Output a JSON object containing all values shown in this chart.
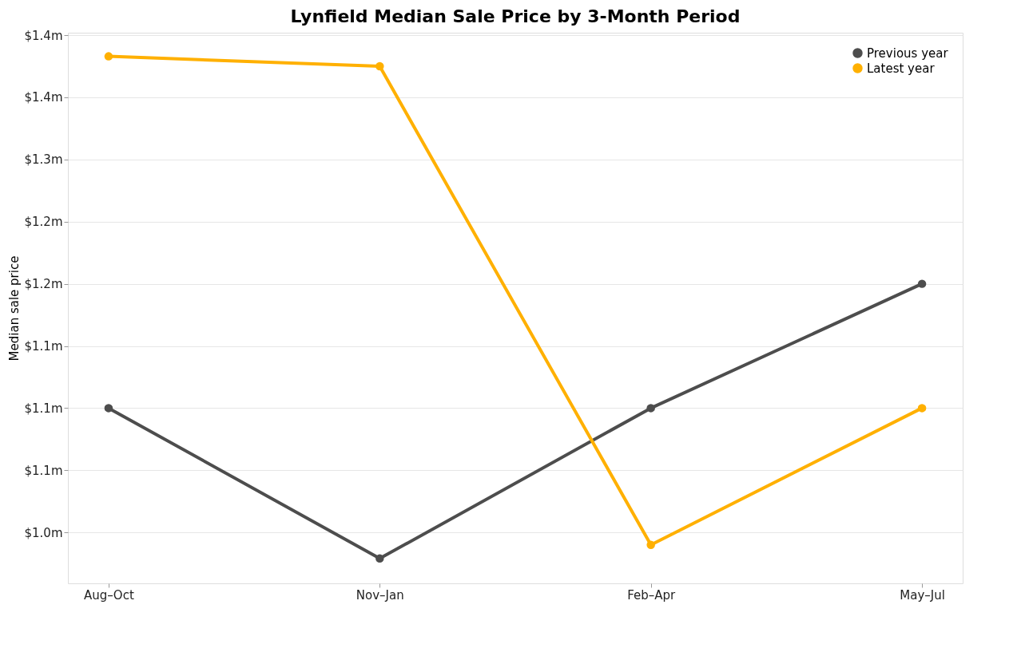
{
  "chart_data": {
    "type": "line",
    "title": "Lynfield Median Sale Price by 3-Month Period",
    "ylabel": "Median sale price",
    "categories": [
      "Aug–Oct",
      "Nov–Jan",
      "Feb–Apr",
      "May–Jul"
    ],
    "series": [
      {
        "name": "Previous year",
        "color": "#4d4d4d",
        "values": [
          1.1,
          0.979,
          1.1,
          1.2
        ]
      },
      {
        "name": "Latest year",
        "color": "#ffb000",
        "values": [
          1.383,
          1.375,
          0.99,
          1.1
        ]
      }
    ],
    "ylim": [
      0.959,
      1.402
    ],
    "yticks": [
      {
        "value": 1.0,
        "label": "$1.0m"
      },
      {
        "value": 1.05,
        "label": "$1.1m"
      },
      {
        "value": 1.1,
        "label": "$1.1m"
      },
      {
        "value": 1.15,
        "label": "$1.1m"
      },
      {
        "value": 1.2,
        "label": "$1.2m"
      },
      {
        "value": 1.25,
        "label": "$1.2m"
      },
      {
        "value": 1.3,
        "label": "$1.3m"
      },
      {
        "value": 1.35,
        "label": "$1.4m"
      },
      {
        "value": 1.4,
        "label": "$1.4m"
      }
    ],
    "grid": "y",
    "legend": "top right",
    "marker": "circle",
    "line_style": "solid"
  }
}
